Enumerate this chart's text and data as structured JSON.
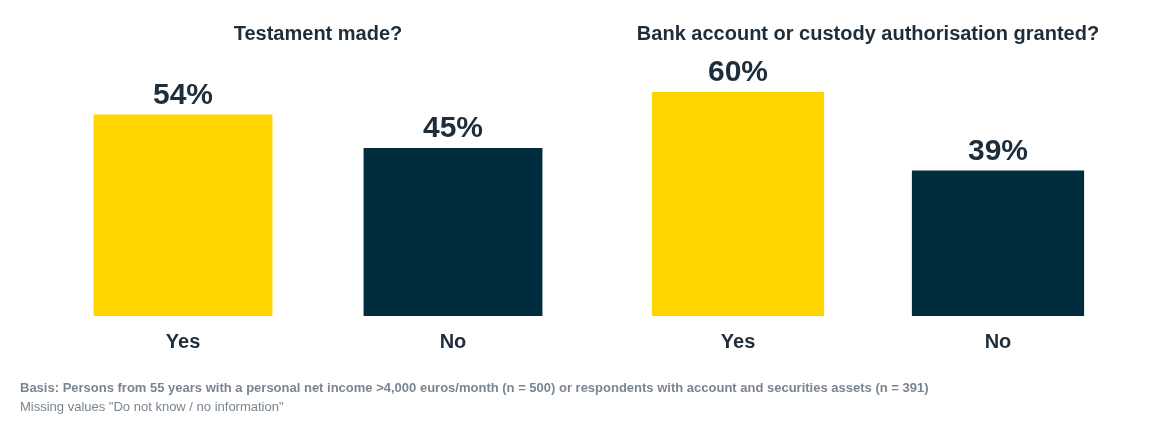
{
  "chart_data": [
    {
      "type": "bar",
      "title": "Testament made?",
      "categories": [
        "Yes",
        "No"
      ],
      "values": [
        54,
        45
      ],
      "colors": [
        "#ffd600",
        "#002d3d"
      ],
      "value_labels": [
        "54%",
        "45%"
      ],
      "grid": false,
      "legend": false
    },
    {
      "type": "bar",
      "title": "Bank account or custody authorisation granted?",
      "categories": [
        "Yes",
        "No"
      ],
      "values": [
        60,
        39
      ],
      "colors": [
        "#ffd600",
        "#002d3d"
      ],
      "value_labels": [
        "60%",
        "39%"
      ],
      "grid": false,
      "legend": false,
      "annotations": [
        "Basis: Persons from 55 years with a personal net income >4,000 euros/month (n = 500) or respondents with account and securities assets (n = 391)",
        "Missing values \"Do not know / no information\""
      ]
    }
  ]
}
